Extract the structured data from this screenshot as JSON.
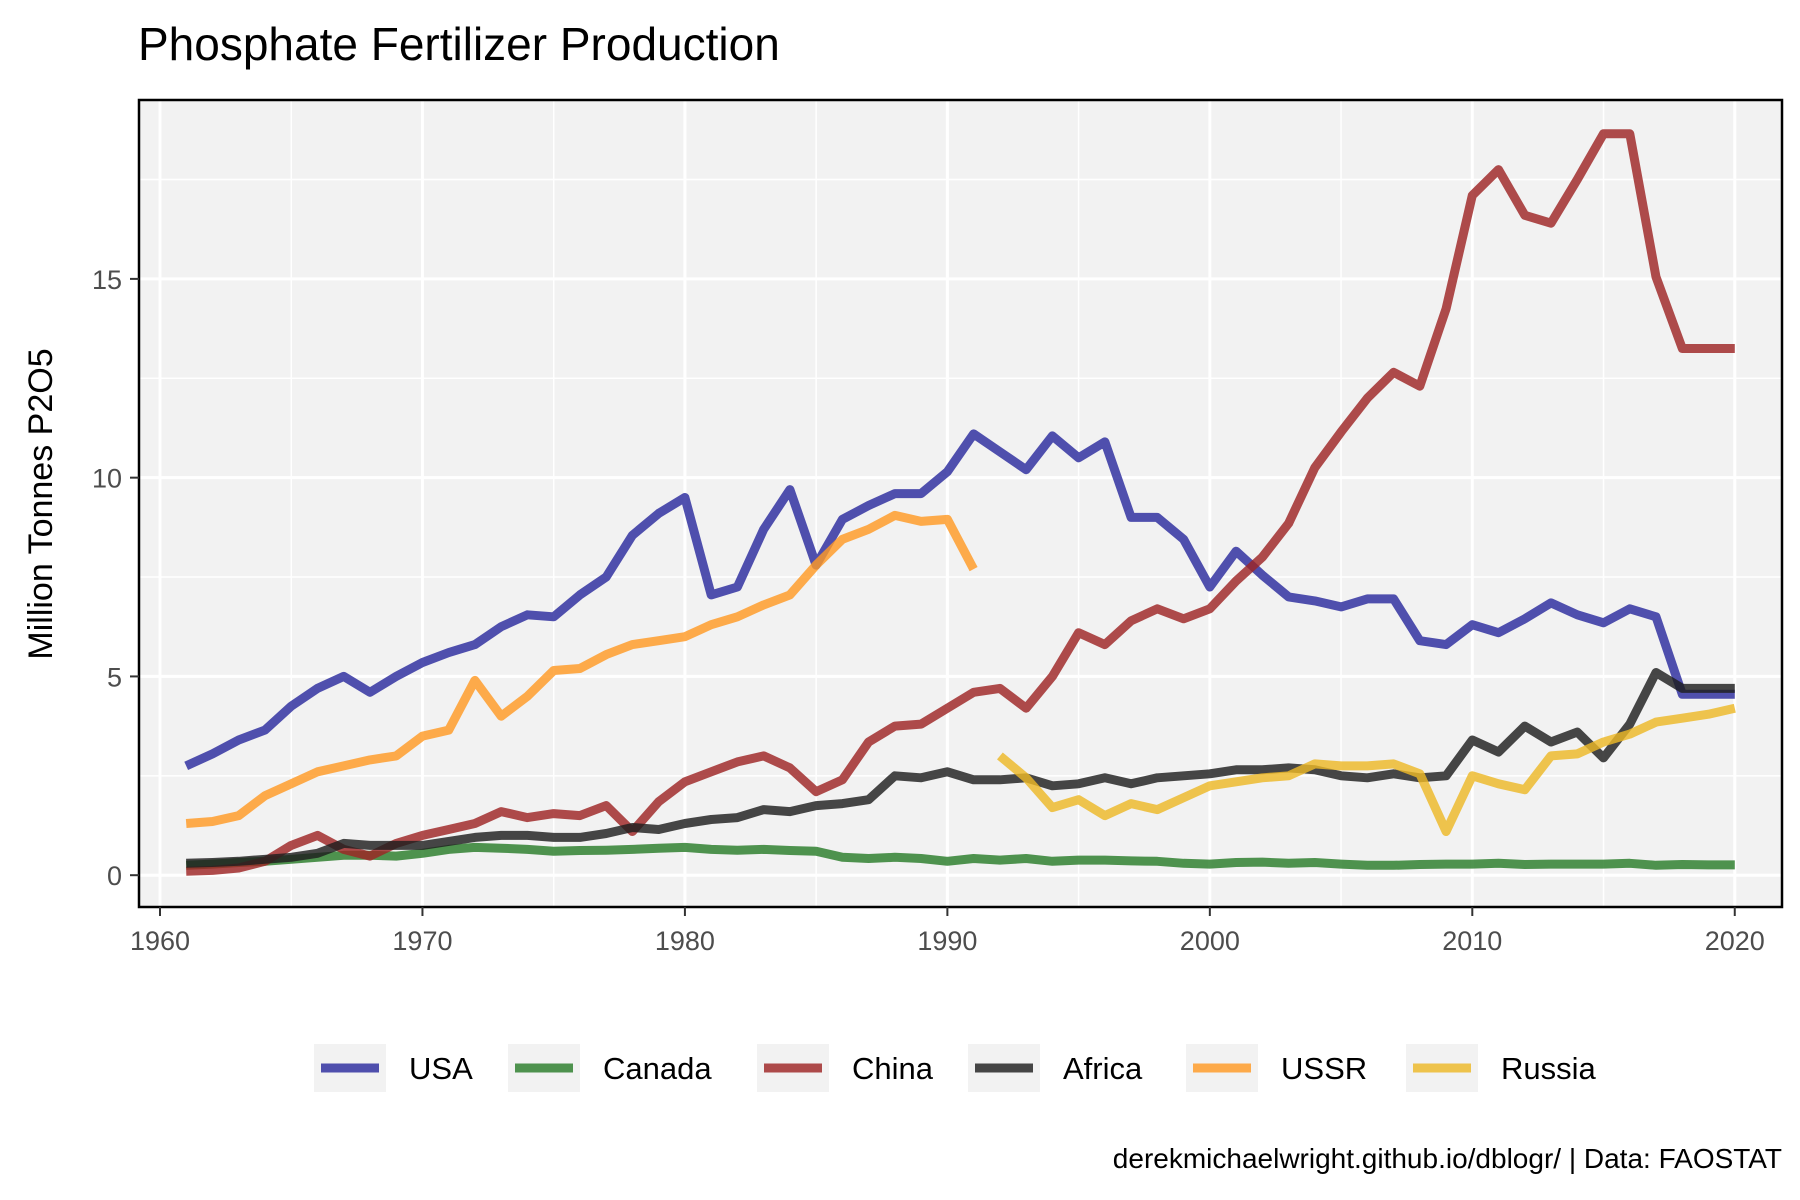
{
  "chart_data": {
    "type": "line",
    "title": "Phosphate Fertilizer Production",
    "ylabel": "Million Tonnes P2O5",
    "xlabel": "",
    "caption": "derekmichaelwright.github.io/dblogr/ | Data: FAOSTAT",
    "xlim": [
      1959.2,
      2021.8
    ],
    "ylim": [
      -0.8,
      19.5
    ],
    "x_ticks": [
      1960,
      1970,
      1980,
      1990,
      2000,
      2010,
      2020
    ],
    "y_ticks": [
      0,
      5,
      10,
      15
    ],
    "grid": true,
    "legend_position": "bottom",
    "series": [
      {
        "name": "USA",
        "color": "#2b2b9e",
        "start_year": 1961,
        "values": [
          2.75,
          3.05,
          3.4,
          3.65,
          4.25,
          4.7,
          5.0,
          4.6,
          5.0,
          5.35,
          5.6,
          5.8,
          6.25,
          6.55,
          6.5,
          7.05,
          7.5,
          8.55,
          9.1,
          9.5,
          7.05,
          7.25,
          8.7,
          9.7,
          7.8,
          8.95,
          9.3,
          9.6,
          9.6,
          10.15,
          11.1,
          10.65,
          10.2,
          11.05,
          10.5,
          10.9,
          9.0,
          9.0,
          8.45,
          7.25,
          8.15,
          7.55,
          7.0,
          6.9,
          6.75,
          6.95,
          6.95,
          5.9,
          5.8,
          6.3,
          6.1,
          6.45,
          6.85,
          6.55,
          6.35,
          6.7,
          6.5,
          4.55,
          4.55,
          4.55
        ]
      },
      {
        "name": "Canada",
        "color": "#2a7d2a",
        "start_year": 1961,
        "values": [
          0.25,
          0.28,
          0.32,
          0.35,
          0.4,
          0.45,
          0.5,
          0.5,
          0.48,
          0.55,
          0.65,
          0.7,
          0.68,
          0.65,
          0.6,
          0.62,
          0.63,
          0.65,
          0.68,
          0.7,
          0.65,
          0.63,
          0.65,
          0.62,
          0.6,
          0.45,
          0.42,
          0.45,
          0.42,
          0.35,
          0.42,
          0.38,
          0.42,
          0.35,
          0.38,
          0.38,
          0.36,
          0.35,
          0.3,
          0.28,
          0.32,
          0.33,
          0.3,
          0.32,
          0.28,
          0.25,
          0.25,
          0.27,
          0.28,
          0.28,
          0.3,
          0.27,
          0.28,
          0.28,
          0.28,
          0.3,
          0.25,
          0.27,
          0.26,
          0.26
        ]
      },
      {
        "name": "China",
        "color": "#9e2424",
        "start_year": 1961,
        "values": [
          0.1,
          0.12,
          0.18,
          0.35,
          0.75,
          1.0,
          0.65,
          0.48,
          0.8,
          1.0,
          1.15,
          1.3,
          1.6,
          1.45,
          1.55,
          1.5,
          1.75,
          1.1,
          1.85,
          2.35,
          2.6,
          2.85,
          3.0,
          2.7,
          2.1,
          2.4,
          3.35,
          3.75,
          3.8,
          4.2,
          4.6,
          4.7,
          4.2,
          5.0,
          6.1,
          5.8,
          6.4,
          6.7,
          6.45,
          6.7,
          7.4,
          8.0,
          8.85,
          10.25,
          11.15,
          12.0,
          12.65,
          12.3,
          14.25,
          17.1,
          17.75,
          16.6,
          16.4,
          17.5,
          18.65,
          18.65,
          15.05,
          13.25,
          13.25,
          13.25
        ]
      },
      {
        "name": "Africa",
        "color": "#1f1f1f",
        "start_year": 1961,
        "values": [
          0.3,
          0.32,
          0.35,
          0.4,
          0.45,
          0.55,
          0.8,
          0.75,
          0.75,
          0.75,
          0.85,
          0.95,
          1.0,
          1.0,
          0.95,
          0.95,
          1.05,
          1.2,
          1.15,
          1.3,
          1.4,
          1.45,
          1.65,
          1.6,
          1.75,
          1.8,
          1.9,
          2.5,
          2.45,
          2.6,
          2.4,
          2.4,
          2.45,
          2.25,
          2.3,
          2.45,
          2.3,
          2.45,
          2.5,
          2.55,
          2.65,
          2.65,
          2.7,
          2.65,
          2.5,
          2.45,
          2.55,
          2.45,
          2.5,
          3.4,
          3.1,
          3.75,
          3.35,
          3.6,
          2.95,
          3.8,
          5.1,
          4.7,
          4.7,
          4.7
        ]
      },
      {
        "name": "USSR",
        "color": "#ff9a24",
        "start_year": 1961,
        "values": [
          1.3,
          1.35,
          1.5,
          2.0,
          2.3,
          2.6,
          2.75,
          2.9,
          3.0,
          3.5,
          3.65,
          4.9,
          4.0,
          4.5,
          5.15,
          5.2,
          5.55,
          5.8,
          5.9,
          6.0,
          6.3,
          6.5,
          6.8,
          7.05,
          7.8,
          8.45,
          8.7,
          9.05,
          8.9,
          8.95,
          7.7
        ]
      },
      {
        "name": "Russia",
        "color": "#edb827",
        "start_year": 1992,
        "values": [
          3.0,
          2.45,
          1.7,
          1.9,
          1.5,
          1.8,
          1.65,
          1.95,
          2.25,
          2.35,
          2.45,
          2.5,
          2.8,
          2.75,
          2.75,
          2.8,
          2.55,
          1.1,
          2.5,
          2.3,
          2.15,
          3.0,
          3.05,
          3.35,
          3.55,
          3.85,
          3.95,
          4.05,
          4.2
        ]
      }
    ]
  }
}
